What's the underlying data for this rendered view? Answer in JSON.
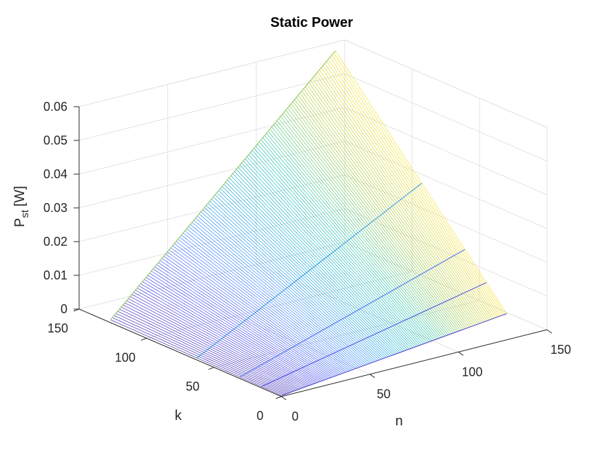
{
  "chart_data": {
    "type": "surface",
    "title": "Static Power",
    "xlabel": "n",
    "ylabel": "k",
    "zlabel": {
      "main": "P",
      "sub": "st",
      "unit": "[W]"
    },
    "x_range": [
      0,
      150
    ],
    "y_range": [
      0,
      150
    ],
    "zlim": [
      0,
      0.06
    ],
    "x_ticks": [
      0,
      50,
      100,
      150
    ],
    "y_ticks": [
      0,
      50,
      100,
      150
    ],
    "z_ticks": [
      0,
      0.01,
      0.02,
      0.03,
      0.04,
      0.05,
      0.06
    ],
    "z_tick_labels": [
      "0",
      "0.01",
      "0.02",
      "0.03",
      "0.04",
      "0.05",
      "0.06"
    ],
    "surface": {
      "n_range": [
        1,
        128
      ],
      "k_range": [
        1,
        128
      ],
      "z_at_n0_k0": 0,
      "z_at_nmax_k0": 0.0075,
      "z_at_n0_kmax": 0.0005,
      "z_at_nmax_kmax": 0.0635
    },
    "colormap": [
      "#3e26a8",
      "#4446e8",
      "#3b7ffb",
      "#1aa6d9",
      "#26c1aa",
      "#a3c73c",
      "#f9e12e"
    ],
    "grid": true
  }
}
